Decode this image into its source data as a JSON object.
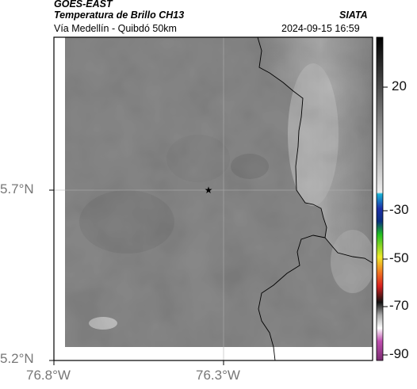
{
  "header": {
    "satellite": "GOES-EAST",
    "product": "Temperatura de Brillo CH13",
    "region": "Vía Medellín - Quibdó 50km",
    "organization": "SIATA",
    "datetime": "2024-09-15 16:59"
  },
  "map": {
    "lat_ticks": [
      "5.7°N",
      "5.2°N"
    ],
    "lon_ticks": [
      "76.8°W",
      "76.3°W"
    ],
    "marker": "star-icon"
  },
  "colorbar": {
    "ticks": [
      "20",
      "-30",
      "-50",
      "-70",
      "-90"
    ],
    "colors": {
      "warm_gray": "#9a9a9a",
      "cyan": "#19b5d8",
      "blue": "#1c2fa8",
      "green": "#20c020",
      "yellow": "#f0ea2a",
      "red": "#d82020",
      "black": "#111111",
      "magenta": "#c04fb0"
    }
  },
  "colors": {
    "coastline": "#000000",
    "background": "#ffffff"
  }
}
